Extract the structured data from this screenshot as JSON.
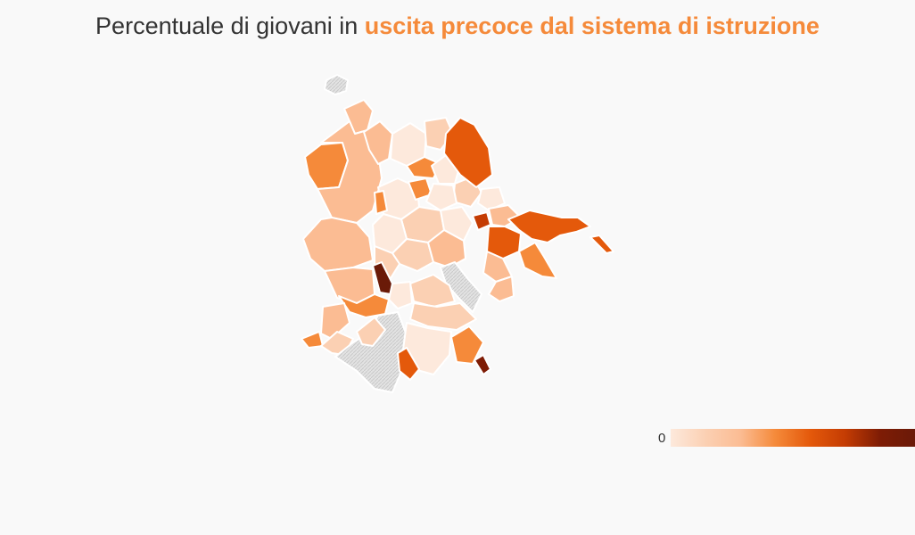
{
  "title": {
    "prefix": "Percentuale di giovani in ",
    "highlight": "uscita precoce dal sistema di istruzione"
  },
  "colors": {
    "background": "#f9f9f9",
    "highlight": "#f58a3a",
    "border": "#ffffff",
    "no_data": "#e3e3e3",
    "scale": [
      "#fde9dc",
      "#fbd0b3",
      "#fbbc93",
      "#f58a3a",
      "#e4590b",
      "#c43c03",
      "#7e1c05",
      "#6a1a08"
    ]
  },
  "legend": {
    "min_label": "0"
  }
}
